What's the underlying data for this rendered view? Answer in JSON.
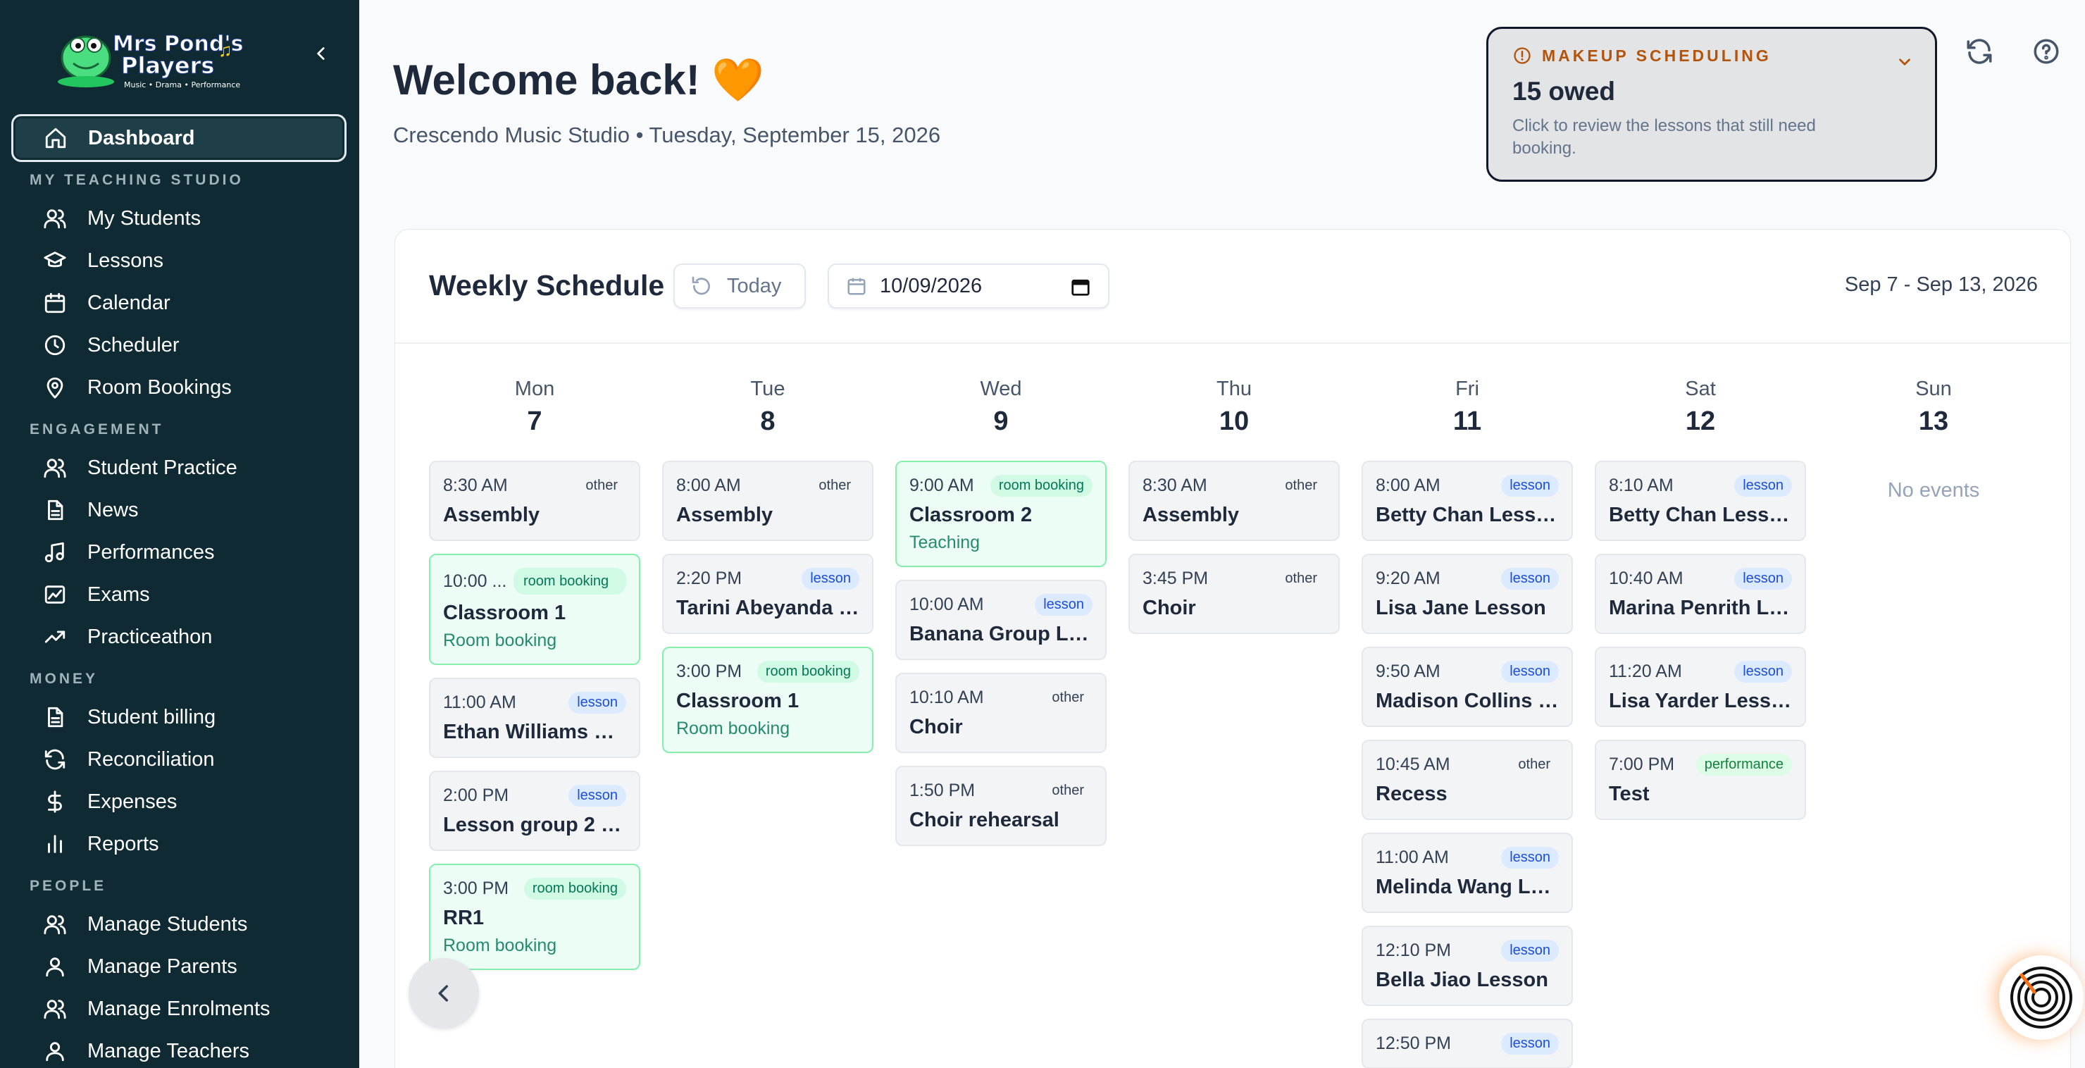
{
  "sidebar": {
    "logo_text": "Mrs Pond's Players",
    "logo_tagline": "Music • Drama • Performance",
    "dashboard": "Dashboard",
    "sections": {
      "teaching": "MY TEACHING STUDIO",
      "engagement": "ENGAGEMENT",
      "money": "MONEY",
      "people": "PEOPLE"
    },
    "teaching_items": [
      "My Students",
      "Lessons",
      "Calendar",
      "Scheduler",
      "Room Bookings"
    ],
    "engagement_items": [
      "Student Practice",
      "News",
      "Performances",
      "Exams",
      "Practiceathon"
    ],
    "money_items": [
      "Student billing",
      "Reconciliation",
      "Expenses",
      "Reports"
    ],
    "people_items": [
      "Manage Students",
      "Manage Parents",
      "Manage Enrolments",
      "Manage Teachers"
    ]
  },
  "header": {
    "welcome": "Welcome back! 🧡",
    "subtitle": "Crescendo Music Studio • Tuesday, September 15, 2026"
  },
  "makeup": {
    "title": "MAKEUP SCHEDULING",
    "count": "15 owed",
    "description": "Click to review the lessons that still need booking."
  },
  "schedule": {
    "title": "Weekly Schedule",
    "today_label": "Today",
    "date_value": "10/09/2026",
    "range": "Sep 7 - Sep 13, 2026",
    "no_events": "No events",
    "days": [
      {
        "name": "Mon",
        "num": "7",
        "events": [
          {
            "time": "8:30 AM",
            "badge": "other",
            "title": "Assembly",
            "sub": ""
          },
          {
            "time": "10:00 ...",
            "badge": "room booking",
            "title": "Classroom 1",
            "sub": "Room booking"
          },
          {
            "time": "11:00 AM",
            "badge": "lesson",
            "title": "Ethan Williams Le...",
            "sub": ""
          },
          {
            "time": "2:00 PM",
            "badge": "lesson",
            "title": "Lesson group 2 L...",
            "sub": ""
          },
          {
            "time": "3:00 PM",
            "badge": "room booking",
            "title": "RR1",
            "sub": "Room booking"
          }
        ]
      },
      {
        "name": "Tue",
        "num": "8",
        "events": [
          {
            "time": "8:00 AM",
            "badge": "other",
            "title": "Assembly",
            "sub": ""
          },
          {
            "time": "2:20 PM",
            "badge": "lesson",
            "title": "Tarini Abeyanda L...",
            "sub": ""
          },
          {
            "time": "3:00 PM",
            "badge": "room booking",
            "title": "Classroom 1",
            "sub": "Room booking"
          }
        ]
      },
      {
        "name": "Wed",
        "num": "9",
        "events": [
          {
            "time": "9:00 AM",
            "badge": "room booking",
            "title": "Classroom 2",
            "sub": "Teaching"
          },
          {
            "time": "10:00 AM",
            "badge": "lesson",
            "title": "Banana Group Le...",
            "sub": ""
          },
          {
            "time": "10:10 AM",
            "badge": "other",
            "title": "Choir",
            "sub": ""
          },
          {
            "time": "1:50 PM",
            "badge": "other",
            "title": "Choir rehearsal",
            "sub": ""
          }
        ]
      },
      {
        "name": "Thu",
        "num": "10",
        "events": [
          {
            "time": "8:30 AM",
            "badge": "other",
            "title": "Assembly",
            "sub": ""
          },
          {
            "time": "3:45 PM",
            "badge": "other",
            "title": "Choir",
            "sub": ""
          }
        ]
      },
      {
        "name": "Fri",
        "num": "11",
        "events": [
          {
            "time": "8:00 AM",
            "badge": "lesson",
            "title": "Betty Chan Lesson",
            "sub": ""
          },
          {
            "time": "9:20 AM",
            "badge": "lesson",
            "title": "Lisa Jane Lesson",
            "sub": ""
          },
          {
            "time": "9:50 AM",
            "badge": "lesson",
            "title": "Madison Collins L...",
            "sub": ""
          },
          {
            "time": "10:45 AM",
            "badge": "other",
            "title": "Recess",
            "sub": ""
          },
          {
            "time": "11:00 AM",
            "badge": "lesson",
            "title": "Melinda Wang Les...",
            "sub": ""
          },
          {
            "time": "12:10 PM",
            "badge": "lesson",
            "title": "Bella Jiao Lesson",
            "sub": ""
          },
          {
            "time": "12:50 PM",
            "badge": "lesson",
            "title": "",
            "sub": ""
          }
        ]
      },
      {
        "name": "Sat",
        "num": "12",
        "events": [
          {
            "time": "8:10 AM",
            "badge": "lesson",
            "title": "Betty Chan Lesson",
            "sub": ""
          },
          {
            "time": "10:40 AM",
            "badge": "lesson",
            "title": "Marina Penrith Le...",
            "sub": ""
          },
          {
            "time": "11:20 AM",
            "badge": "lesson",
            "title": "Lisa Yarder Lesson",
            "sub": ""
          },
          {
            "time": "7:00 PM",
            "badge": "performance",
            "title": "Test",
            "sub": ""
          }
        ]
      },
      {
        "name": "Sun",
        "num": "13",
        "events": []
      }
    ]
  },
  "colors": {
    "sidebar_bg": "#0f2a33",
    "accent_orange": "#b45309",
    "room_booking_bg": "#ecfdf5",
    "lesson_badge": "#dbeafe"
  }
}
